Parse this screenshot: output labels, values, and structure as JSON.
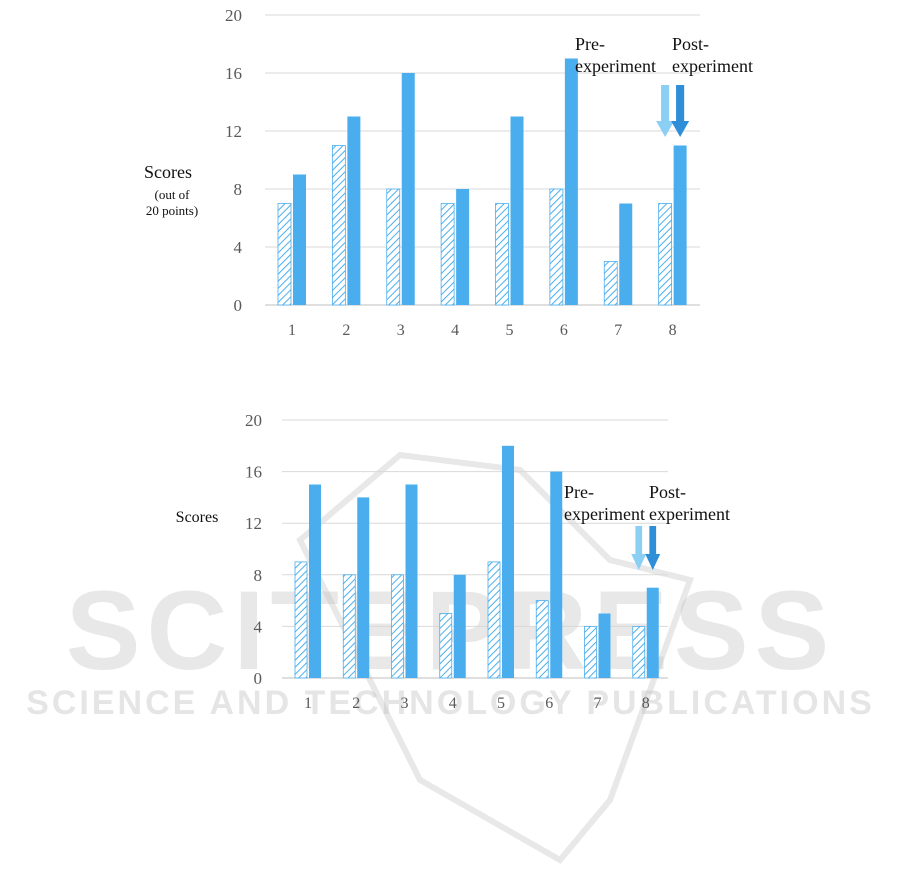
{
  "watermark": {
    "big": "SCITEPRESS",
    "small": "SCIENCE AND TECHNOLOGY PUBLICATIONS"
  },
  "colors": {
    "post": "#4aaeee",
    "pre_hatch": "#4aaeee",
    "arrow_pre": "#8ccff5",
    "arrow_post": "#2e8fd8",
    "grid": "#d9d9d9",
    "tick": "#595959"
  },
  "chart_data": [
    {
      "type": "bar",
      "title": "",
      "ylabel": "Scores",
      "ylabel_sub": [
        "(out of",
        "20 points)"
      ],
      "xlabel": "",
      "ylim": [
        0,
        20
      ],
      "yticks": [
        0,
        4,
        8,
        12,
        16,
        20
      ],
      "categories": [
        "1",
        "2",
        "3",
        "4",
        "5",
        "6",
        "7",
        "8"
      ],
      "series": [
        {
          "name": "Pre-experiment",
          "label_lines": [
            "Pre-",
            "experiment"
          ],
          "pattern": "hatched",
          "values": [
            7,
            11,
            8,
            7,
            7,
            8,
            3,
            7
          ]
        },
        {
          "name": "Post-experiment",
          "label_lines": [
            "Post-",
            "experiment"
          ],
          "pattern": "solid",
          "values": [
            9,
            13,
            16,
            8,
            13,
            17,
            7,
            11
          ]
        }
      ],
      "grid": true,
      "legend": "arrows above category 8"
    },
    {
      "type": "bar",
      "title": "",
      "ylabel": "Scores",
      "ylabel_sub": [],
      "xlabel": "",
      "ylim": [
        0,
        20
      ],
      "yticks": [
        0,
        4,
        8,
        12,
        16,
        20
      ],
      "categories": [
        "1",
        "2",
        "3",
        "4",
        "5",
        "6",
        "7",
        "8"
      ],
      "series": [
        {
          "name": "Pre-experiment",
          "label_lines": [
            "Pre-",
            "experiment"
          ],
          "pattern": "hatched",
          "values": [
            9,
            8,
            8,
            5,
            9,
            6,
            4,
            4
          ]
        },
        {
          "name": "Post-experiment",
          "label_lines": [
            "Post-",
            "experiment"
          ],
          "pattern": "solid",
          "values": [
            15,
            14,
            15,
            8,
            18,
            16,
            5,
            7
          ]
        }
      ],
      "grid": true,
      "legend": "arrows above category 8"
    }
  ]
}
